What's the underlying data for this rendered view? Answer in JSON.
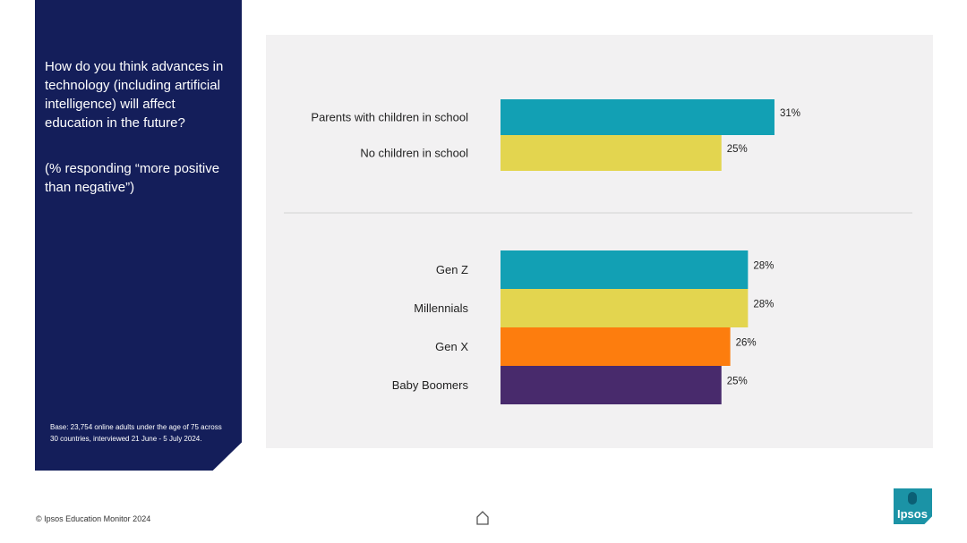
{
  "side": {
    "question": "How do you think advances in technology (including artificial intelligence) will affect education in the future?",
    "subtitle": "(% responding “more positive than negative”)",
    "base": "Base: 23,754 online adults under the age of 75 across 30 countries, interviewed 21 June - 5 July 2024."
  },
  "footer": {
    "copyright": "© Ipsos Education Monitor 2024"
  },
  "logo": {
    "text": "Ipsos"
  },
  "chart_data": {
    "type": "bar",
    "orientation": "horizontal",
    "unit": "%",
    "groups": [
      {
        "categories": [
          "Parents with children in school",
          "No children in school"
        ],
        "values": [
          31,
          25
        ],
        "labels": [
          "31%",
          "25%"
        ],
        "colors": [
          "#12a0b4",
          "#e3d54f"
        ]
      },
      {
        "categories": [
          "Gen Z",
          "Millennials",
          "Gen X",
          "Baby Boomers"
        ],
        "values": [
          28,
          28,
          26,
          25
        ],
        "labels": [
          "28%",
          "28%",
          "26%",
          "25%"
        ],
        "colors": [
          "#12a0b4",
          "#e3d54f",
          "#fd7d0e",
          "#482a6c"
        ]
      }
    ],
    "grid": false,
    "legend": "none"
  }
}
